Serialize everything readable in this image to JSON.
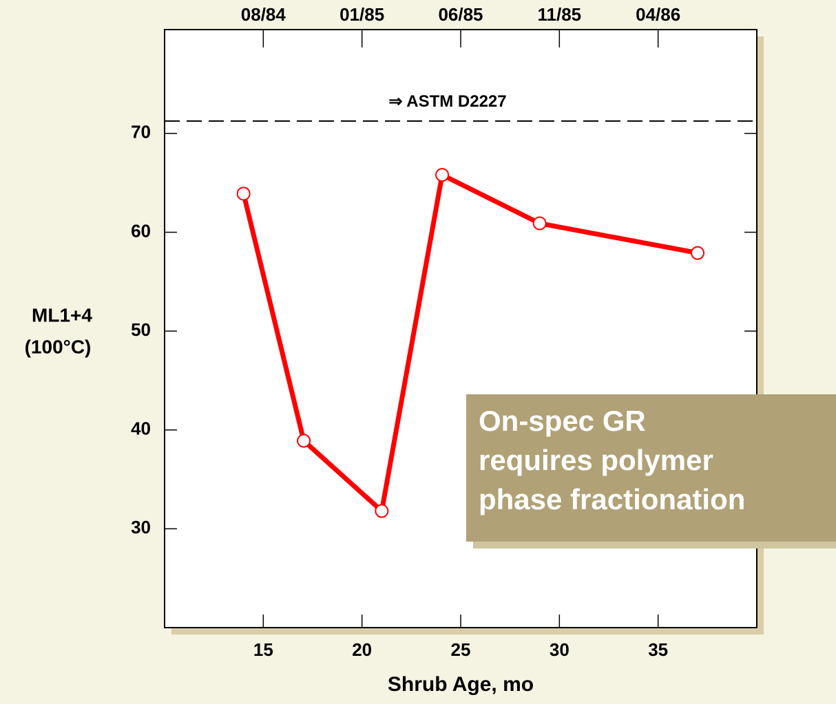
{
  "chart_data": {
    "type": "line",
    "xlabel": "Shrub Age, mo",
    "ylabel": [
      "ML1+4",
      "(100°C)"
    ],
    "x": [
      14.0,
      17.05,
      21.0,
      24.06,
      29.0,
      37.0
    ],
    "series": [
      {
        "color": "#ff0000",
        "values": [
          63.9,
          38.9,
          31.8,
          65.8,
          60.9,
          57.9
        ]
      }
    ],
    "xlim": [
      10,
      40
    ],
    "xticks": [
      15,
      20,
      25,
      30,
      35
    ],
    "x2ticks": [
      {
        "value": 15,
        "label": "08/84"
      },
      {
        "value": 20,
        "label": "01/85"
      },
      {
        "value": 25,
        "label": "06/85"
      },
      {
        "value": 30,
        "label": "11/85"
      },
      {
        "value": 35,
        "label": "04/86"
      }
    ],
    "ylim": [
      20,
      80.5
    ],
    "yticks": [
      30,
      40,
      50,
      60,
      70
    ],
    "reference_line": {
      "value": 71.25,
      "label": "⇒ ASTM D2227"
    },
    "callout": [
      "On-spec GR",
      "requires polymer",
      "phase fractionation"
    ]
  }
}
